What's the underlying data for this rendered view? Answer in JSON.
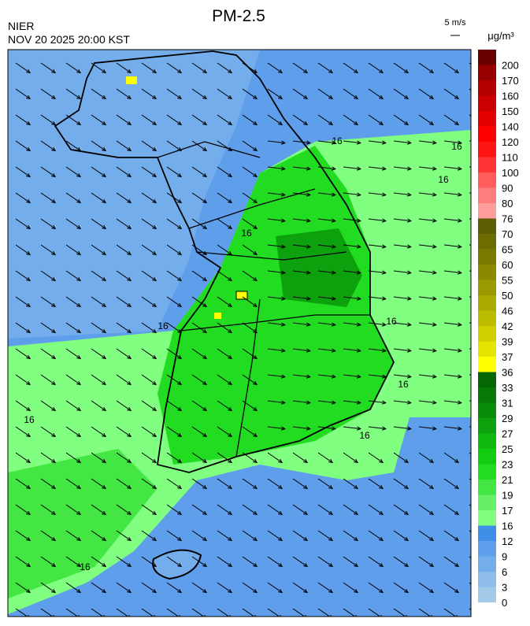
{
  "header": {
    "title": "PM-2.5",
    "source": "NIER",
    "datetime": "NOV 20 2025 20:00 KST",
    "wind_scale": "5 m/s",
    "unit": "μg/m³"
  },
  "colorbar": {
    "levels": [
      0,
      3,
      6,
      9,
      12,
      16,
      17,
      19,
      21,
      23,
      25,
      27,
      29,
      31,
      33,
      36,
      37,
      39,
      42,
      46,
      50,
      55,
      60,
      65,
      70,
      76,
      80,
      90,
      100,
      110,
      120,
      140,
      150,
      160,
      170,
      200
    ],
    "colors": [
      "#a3cbe8",
      "#8ebdea",
      "#74adec",
      "#5e9eea",
      "#3f8fe8",
      "#80ff80",
      "#66f066",
      "#44e644",
      "#22dc22",
      "#12cc12",
      "#10b810",
      "#0da20d",
      "#0a8c0a",
      "#087808",
      "#056605",
      "#ffff00",
      "#e4e400",
      "#d0d000",
      "#bcbc00",
      "#aaaa00",
      "#9a9a00",
      "#8a8a00",
      "#7a7a00",
      "#6c6c00",
      "#5c5c00",
      "#ff9c9c",
      "#ff7c7c",
      "#ff5c5c",
      "#ff3434",
      "#ff1414",
      "#ff0000",
      "#e20000",
      "#ca0000",
      "#b20000",
      "#980000",
      "#6b0000"
    ]
  },
  "contour_labels": [
    "16",
    "16",
    "16",
    "16",
    "16",
    "16",
    "16",
    "16",
    "16",
    "16"
  ]
}
